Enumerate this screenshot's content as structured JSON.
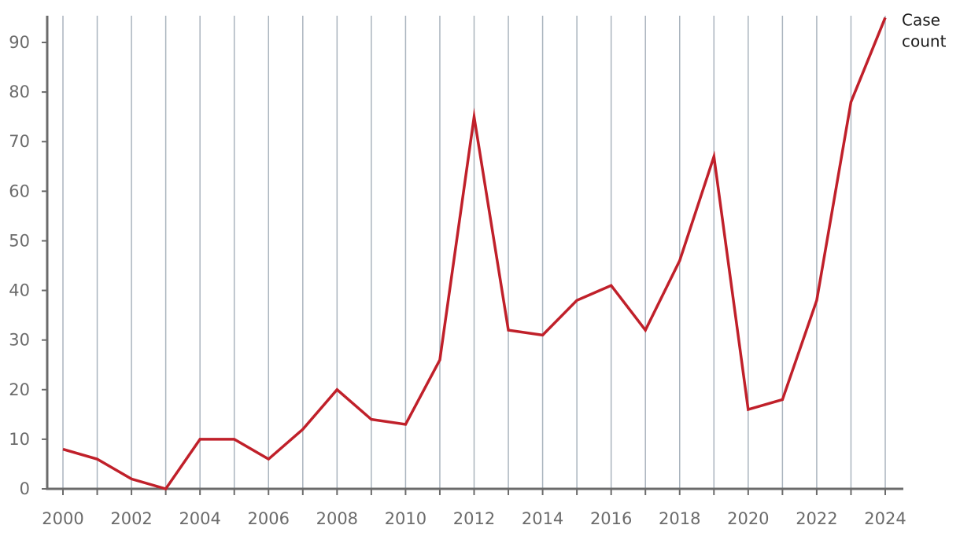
{
  "chart_data": {
    "type": "line",
    "title": "",
    "xlabel": "",
    "ylabel": "",
    "x": [
      2000,
      2001,
      2002,
      2003,
      2004,
      2005,
      2006,
      2007,
      2008,
      2009,
      2010,
      2011,
      2012,
      2013,
      2014,
      2015,
      2016,
      2017,
      2018,
      2019,
      2020,
      2021,
      2022,
      2023,
      2024
    ],
    "series": [
      {
        "name": "Case count",
        "label_lines": [
          "Case",
          "count"
        ],
        "color": "#c0202a",
        "values": [
          8,
          6,
          2,
          0,
          10,
          10,
          6,
          12,
          20,
          14,
          13,
          26,
          75,
          32,
          31,
          38,
          41,
          32,
          46,
          67,
          16,
          18,
          38,
          78,
          95
        ]
      }
    ],
    "xlim": [
      2000,
      2024
    ],
    "ylim": [
      0,
      95
    ],
    "x_ticks": [
      "2000",
      "2002",
      "2004",
      "2006",
      "2008",
      "2010",
      "2012",
      "2014",
      "2016",
      "2018",
      "2020",
      "2022",
      "2024"
    ],
    "y_ticks": [
      "0",
      "10",
      "20",
      "30",
      "40",
      "50",
      "60",
      "70",
      "80",
      "90"
    ],
    "grid": "vertical",
    "grid_color": "#aab4be",
    "axis_color": "#6b6b6b",
    "legend": "direct label at line end"
  }
}
